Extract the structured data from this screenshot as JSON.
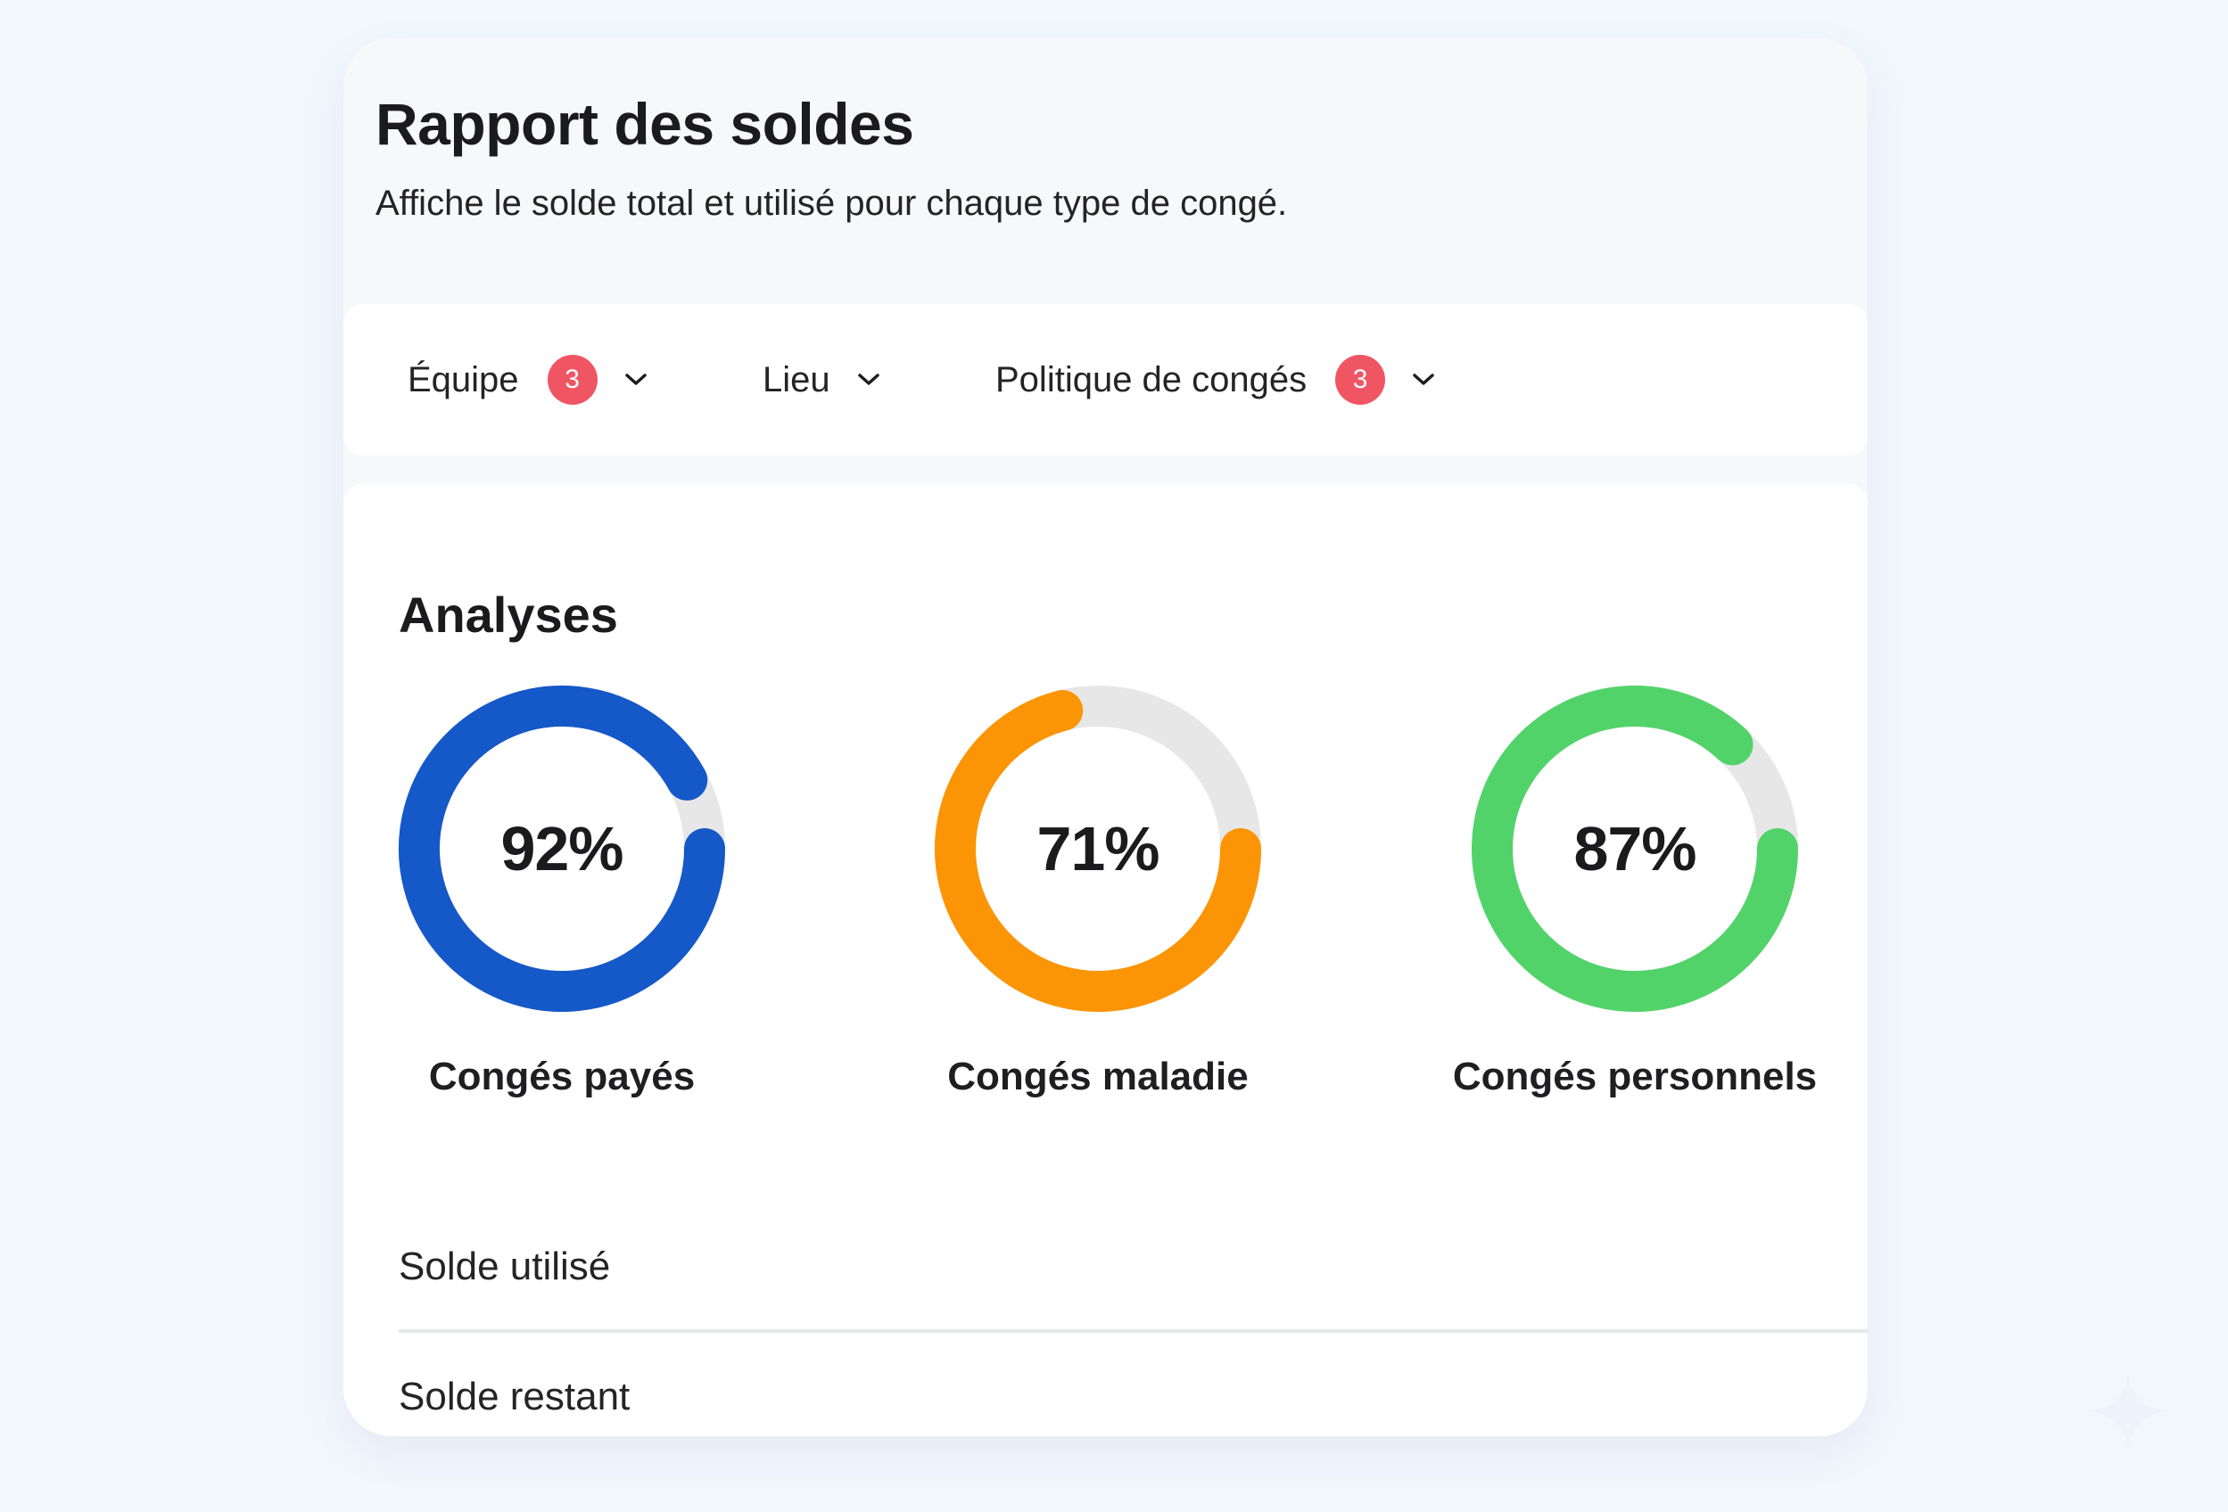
{
  "header": {
    "title": "Rapport des soldes",
    "subtitle": "Affiche le solde total et utilisé pour chaque type de congé."
  },
  "filters": [
    {
      "label": "Équipe",
      "badge": "3",
      "icon": "chevron-down-icon"
    },
    {
      "label": "Lieu",
      "badge": "",
      "icon": "chevron-down-icon"
    },
    {
      "label": "Politique de congés",
      "badge": "3",
      "icon": "chevron-down-icon"
    }
  ],
  "analyses": {
    "title": "Analyses",
    "charts": [
      {
        "value_label": "92%",
        "percent": 92,
        "label": "Congés payés",
        "color": "#1558c7"
      },
      {
        "value_label": "71%",
        "percent": 71,
        "label": "Congés maladie",
        "color": "#fb9505"
      },
      {
        "value_label": "87%",
        "percent": 87,
        "label": "Congés personnels",
        "color": "#52d36a"
      }
    ],
    "track_color": "#e7e7e7"
  },
  "rows": [
    {
      "label": "Solde utilisé"
    },
    {
      "label": "Solde restant"
    }
  ]
}
